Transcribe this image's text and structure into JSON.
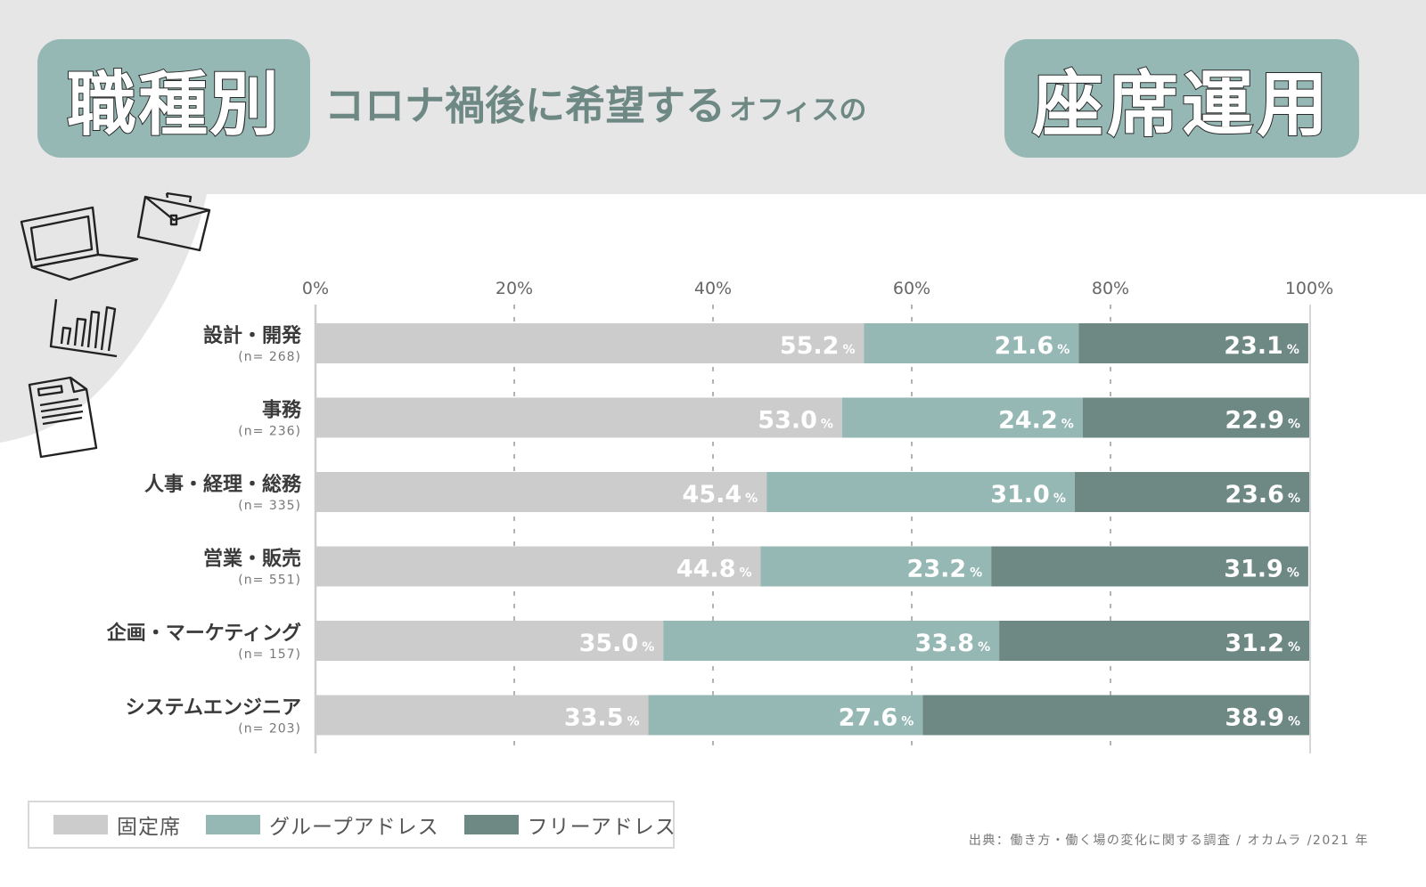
{
  "header": {
    "badge_left": "職種別",
    "subtitle_big": "コロナ禍後に希望する",
    "subtitle_small": "オフィスの",
    "badge_right": "座席運用"
  },
  "icons": [
    "laptop-icon",
    "briefcase-icon",
    "bar-chart-icon",
    "document-icon"
  ],
  "colors": {
    "header_bg": "#e6e6e6",
    "badge": "#95b8b5",
    "subtitle": "#6e8884",
    "fixed": "#cccccc",
    "group": "#95b8b5",
    "free": "#6e8884"
  },
  "chart_data": {
    "type": "bar",
    "orientation": "horizontal",
    "stacked": true,
    "title": "職種別 コロナ禍後に希望するオフィスの座席運用",
    "xlabel": "",
    "ylabel": "",
    "xlim": [
      0,
      100
    ],
    "x_ticks": [
      "0%",
      "20%",
      "40%",
      "60%",
      "80%",
      "100%"
    ],
    "x_tick_values": [
      0,
      20,
      40,
      60,
      80,
      100
    ],
    "grid": "vertical dashed",
    "value_suffix": "%",
    "categories": [
      {
        "label": "設計・開発",
        "n": "(n= 268)"
      },
      {
        "label": "事務",
        "n": "(n= 236)"
      },
      {
        "label": "人事・経理・総務",
        "n": "(n= 335)"
      },
      {
        "label": "営業・販売",
        "n": "(n= 551)"
      },
      {
        "label": "企画・マーケティング",
        "n": "(n= 157)"
      },
      {
        "label": "システムエンジニア",
        "n": "(n= 203)"
      }
    ],
    "series": [
      {
        "name": "固定席",
        "color": "#cccccc",
        "values": [
          55.2,
          53.0,
          45.4,
          44.8,
          35.0,
          33.5
        ],
        "labels": [
          "55.2",
          "53.0",
          "45.4",
          "44.8",
          "35.0",
          "33.5"
        ]
      },
      {
        "name": "グループアドレス",
        "color": "#95b8b5",
        "values": [
          21.6,
          24.2,
          31.0,
          23.2,
          33.8,
          27.6
        ],
        "labels": [
          "21.6",
          "24.2",
          "31.0",
          "23.2",
          "33.8",
          "27.6"
        ]
      },
      {
        "name": "フリーアドレス",
        "color": "#6e8884",
        "values": [
          23.1,
          22.9,
          23.6,
          31.9,
          31.2,
          38.9
        ],
        "labels": [
          "23.1",
          "22.9",
          "23.6",
          "31.9",
          "31.2",
          "38.9"
        ]
      }
    ],
    "legend_position": "bottom-left"
  },
  "legend": {
    "items": [
      {
        "label": "固定席"
      },
      {
        "label": "グループアドレス"
      },
      {
        "label": "フリーアドレス"
      }
    ]
  },
  "footer": {
    "source": "出典：働き方・働く場の変化に関する調査 / オカムラ /2021 年"
  }
}
